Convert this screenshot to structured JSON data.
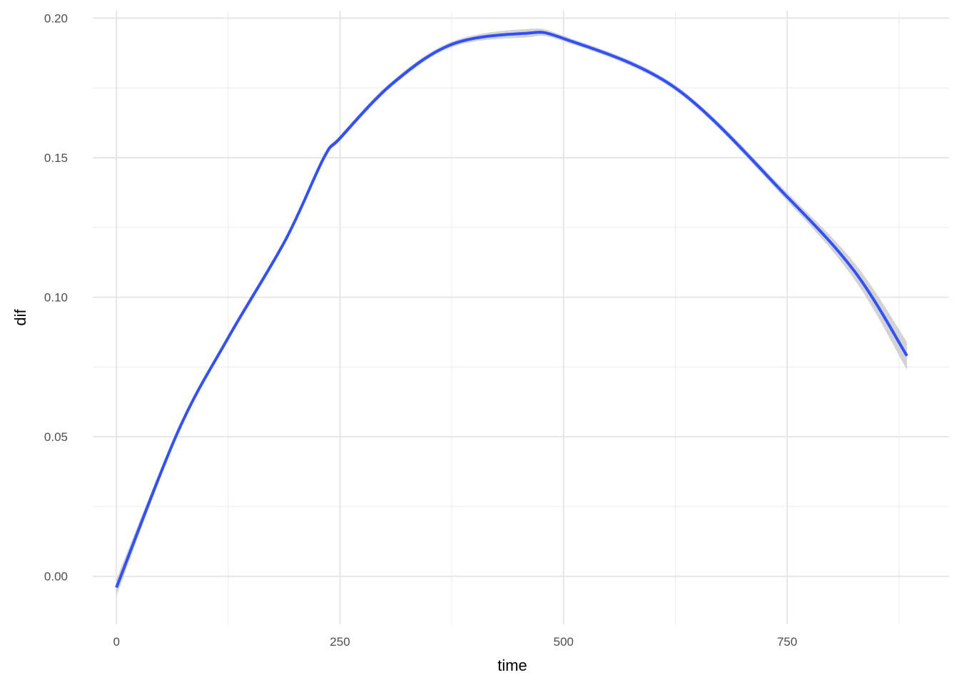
{
  "chart_data": {
    "type": "line",
    "title": "",
    "xlabel": "time",
    "ylabel": "dif",
    "xlim": [
      -52,
      931
    ],
    "ylim": [
      -0.0172,
      0.2065
    ],
    "x_ticks": [
      0,
      250,
      500,
      750
    ],
    "x_tick_labels": [
      "0",
      "250",
      "500",
      "750"
    ],
    "x_minor_ticks": [
      125,
      375,
      625,
      875
    ],
    "y_ticks": [
      0.0,
      0.05,
      0.1,
      0.15,
      0.2
    ],
    "y_tick_labels": [
      "0.00",
      "0.05",
      "0.10",
      "0.15",
      "0.20"
    ],
    "y_minor_ticks": [
      0.025,
      0.075,
      0.125,
      0.175
    ],
    "grid": true,
    "legend": "none",
    "series": [
      {
        "x": [
          0,
          69,
          125,
          189,
          232,
          250,
          308,
          375,
          455,
          500,
          625,
          750,
          826,
          884
        ],
        "y": [
          -0.004,
          0.052,
          0.0855,
          0.1205,
          0.15,
          0.157,
          0.1764,
          0.1906,
          0.1945,
          0.1927,
          0.175,
          0.136,
          0.109,
          0.079
        ],
        "ci_lower": [
          -0.007,
          0.051,
          0.0845,
          0.1195,
          0.149,
          0.156,
          0.1754,
          0.1896,
          0.193,
          0.1917,
          0.174,
          0.1345,
          0.106,
          0.074
        ],
        "ci_upper": [
          -0.001,
          0.053,
          0.0865,
          0.1215,
          0.151,
          0.158,
          0.1774,
          0.1916,
          0.196,
          0.1937,
          0.176,
          0.1375,
          0.112,
          0.084
        ],
        "color": "#3050ff",
        "band_color": "#c8c8c8"
      }
    ]
  }
}
